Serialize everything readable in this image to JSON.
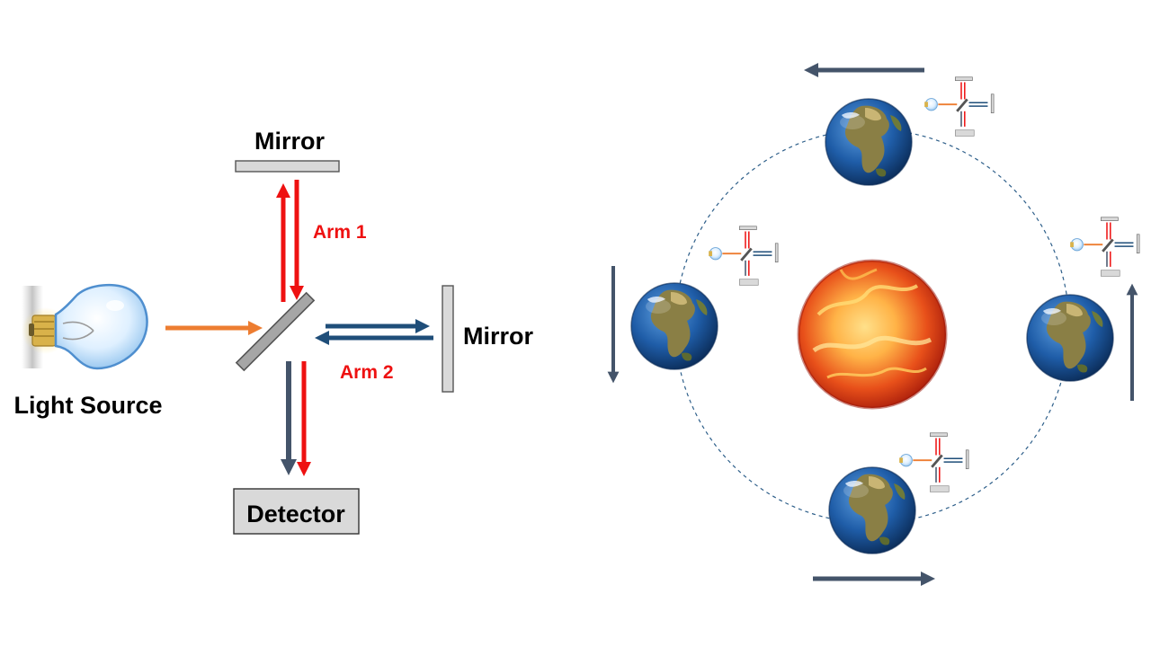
{
  "labels": {
    "mirror_top": "Mirror",
    "mirror_right": "Mirror",
    "arm1": "Arm 1",
    "arm2": "Arm 2",
    "light_source": "Light Source",
    "detector": "Detector"
  },
  "colors": {
    "background": "#ffffff",
    "mirror_fill": "#d9d9d9",
    "red_beam": "#ee1111",
    "navy_beam": "#1f4e79",
    "orange_beam": "#ed7d31",
    "motion_arrow": "#44546a",
    "orbit": "#2e5f8a",
    "sun_core": "#ffb347",
    "sun_edge": "#c0230b",
    "earth_ocean": "#1f5da8",
    "earth_land": "#7a7a3a"
  },
  "icons": {
    "light_bulb": "light-bulb-icon",
    "sun": "sun-icon",
    "earth": "earth-icon",
    "mini_interferometer": "interferometer-icon"
  }
}
